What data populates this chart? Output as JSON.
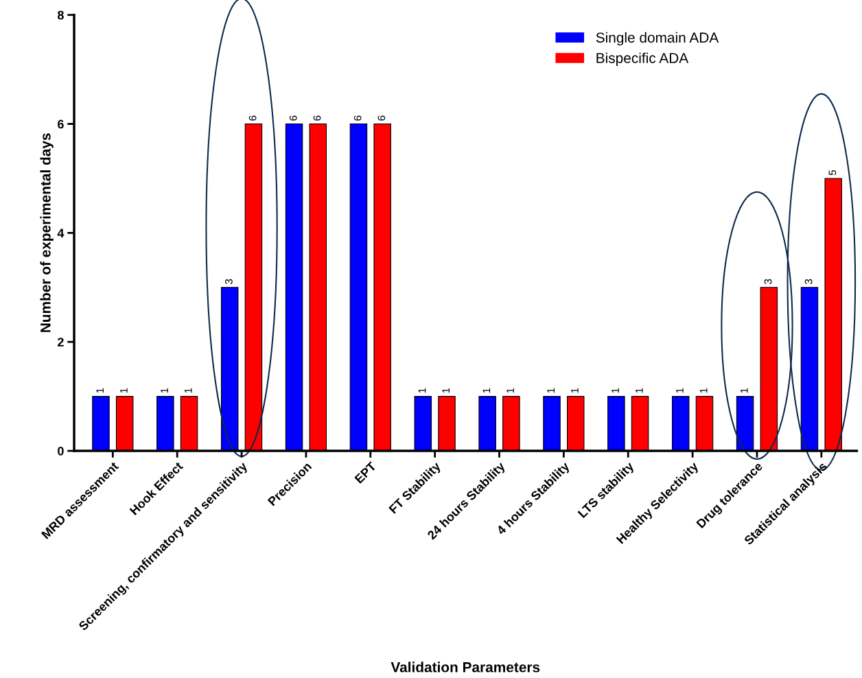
{
  "chart_data": {
    "type": "bar",
    "xlabel": "Validation Parameters",
    "ylabel": "Number of experimental days",
    "categories": [
      "MRD assessment",
      "Hook Effect",
      "Screening, confirmatory and sensitivity",
      "Precision",
      "EPT",
      "FT Stability",
      "24 hours Stability",
      "4 hours Stability",
      "LTS stability",
      "Healthy Selectivity",
      "Drug tolerance",
      "Statistical analysis"
    ],
    "series": [
      {
        "name": "Single domain ADA",
        "color": "#0000ff",
        "values": [
          1,
          1,
          3,
          6,
          6,
          1,
          1,
          1,
          1,
          1,
          1,
          3
        ]
      },
      {
        "name": "Bispecific ADA",
        "color": "#ff0000",
        "values": [
          1,
          1,
          6,
          6,
          6,
          1,
          1,
          1,
          1,
          1,
          3,
          5
        ]
      }
    ],
    "ylim": [
      0,
      8
    ],
    "yticks": [
      0,
      2,
      4,
      6,
      8
    ],
    "grid": false,
    "legend": "top right",
    "data_labels": true
  }
}
